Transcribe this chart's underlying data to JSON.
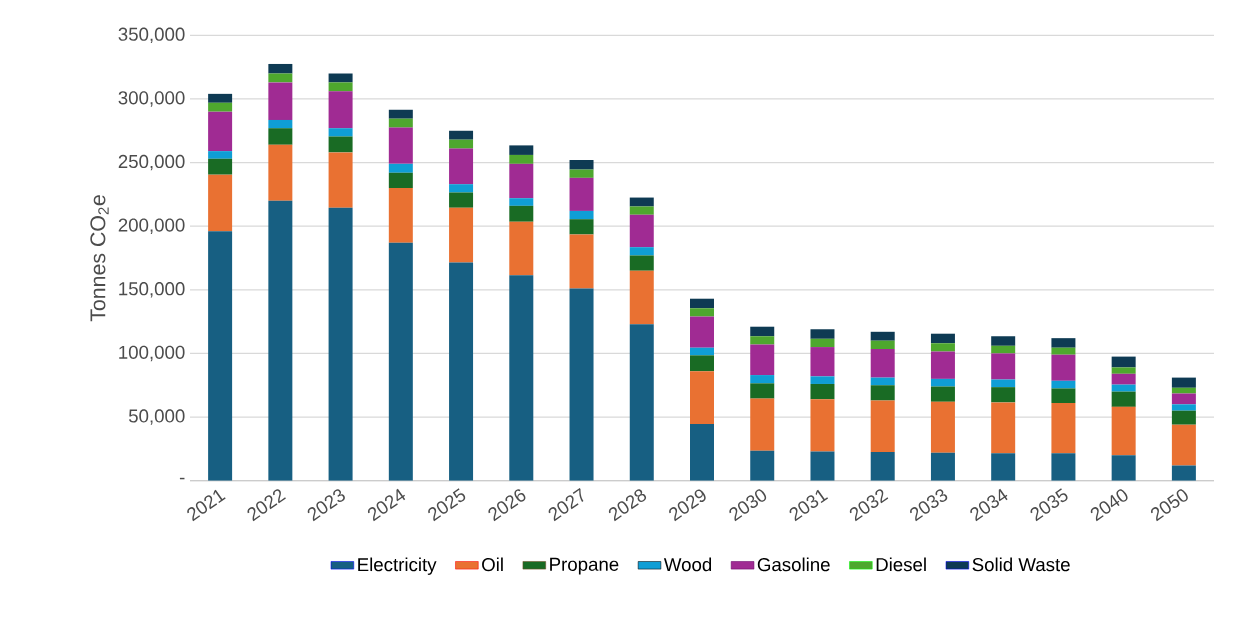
{
  "chart_data": {
    "type": "bar",
    "stacked": true,
    "ylabel": "Tonnes CO$_{2}$e",
    "categories": [
      "2021",
      "2022",
      "2023",
      "2024",
      "2025",
      "2026",
      "2027",
      "2028",
      "2029",
      "2030",
      "2031",
      "2032",
      "2033",
      "2034",
      "2035",
      "2040",
      "2050"
    ],
    "series": [
      {
        "name": "Electricity",
        "color": "#175f82",
        "values": [
          196000,
          220000,
          214500,
          187000,
          171500,
          161500,
          151000,
          123000,
          44500,
          23500,
          23000,
          22500,
          22000,
          21500,
          21500,
          20000,
          12000
        ]
      },
      {
        "name": "Oil",
        "color": "#e97132",
        "values": [
          44500,
          44000,
          43500,
          43000,
          43000,
          42000,
          42500,
          42000,
          41500,
          41000,
          41000,
          40500,
          40000,
          40000,
          39500,
          38000,
          32000
        ]
      },
      {
        "name": "Propane",
        "color": "#196b24",
        "values": [
          12500,
          13000,
          12500,
          12000,
          12000,
          12500,
          12000,
          12000,
          12500,
          12000,
          12000,
          12000,
          12000,
          12000,
          11500,
          12000,
          11000
        ]
      },
      {
        "name": "Wood",
        "color": "#0f9ed5",
        "values": [
          6000,
          6500,
          6500,
          7000,
          6500,
          6000,
          6500,
          6500,
          6000,
          6500,
          6000,
          6000,
          6000,
          6000,
          6000,
          5500,
          5000
        ]
      },
      {
        "name": "Gasoline",
        "color": "#a02b93",
        "values": [
          31000,
          29500,
          29000,
          28500,
          28000,
          27000,
          26000,
          25500,
          24500,
          24000,
          23000,
          22500,
          21500,
          20500,
          20500,
          8500,
          8500
        ]
      },
      {
        "name": "Diesel",
        "color": "#4ea72e",
        "values": [
          7000,
          7000,
          7000,
          7000,
          7000,
          7000,
          6500,
          6500,
          6500,
          6500,
          6500,
          6500,
          6500,
          6000,
          5500,
          5000,
          4500
        ]
      },
      {
        "name": "Solid Waste",
        "color": "#0e3a53",
        "values": [
          7000,
          7500,
          7000,
          7000,
          7000,
          7500,
          7500,
          7000,
          7500,
          7500,
          7500,
          7000,
          7500,
          7500,
          7500,
          8500,
          8000
        ]
      }
    ],
    "ylim": [
      0,
      350000
    ],
    "yticks": [
      {
        "value": 0,
        "label": "-"
      },
      {
        "value": 50000,
        "label": "50,000"
      },
      {
        "value": 100000,
        "label": "100,000"
      },
      {
        "value": 150000,
        "label": "150,000"
      },
      {
        "value": 200000,
        "label": "200,000"
      },
      {
        "value": 250000,
        "label": "250,000"
      },
      {
        "value": 300000,
        "label": "300,000"
      },
      {
        "value": 350000,
        "label": "350,000"
      }
    ],
    "grid": "y",
    "legend": "bottom"
  }
}
